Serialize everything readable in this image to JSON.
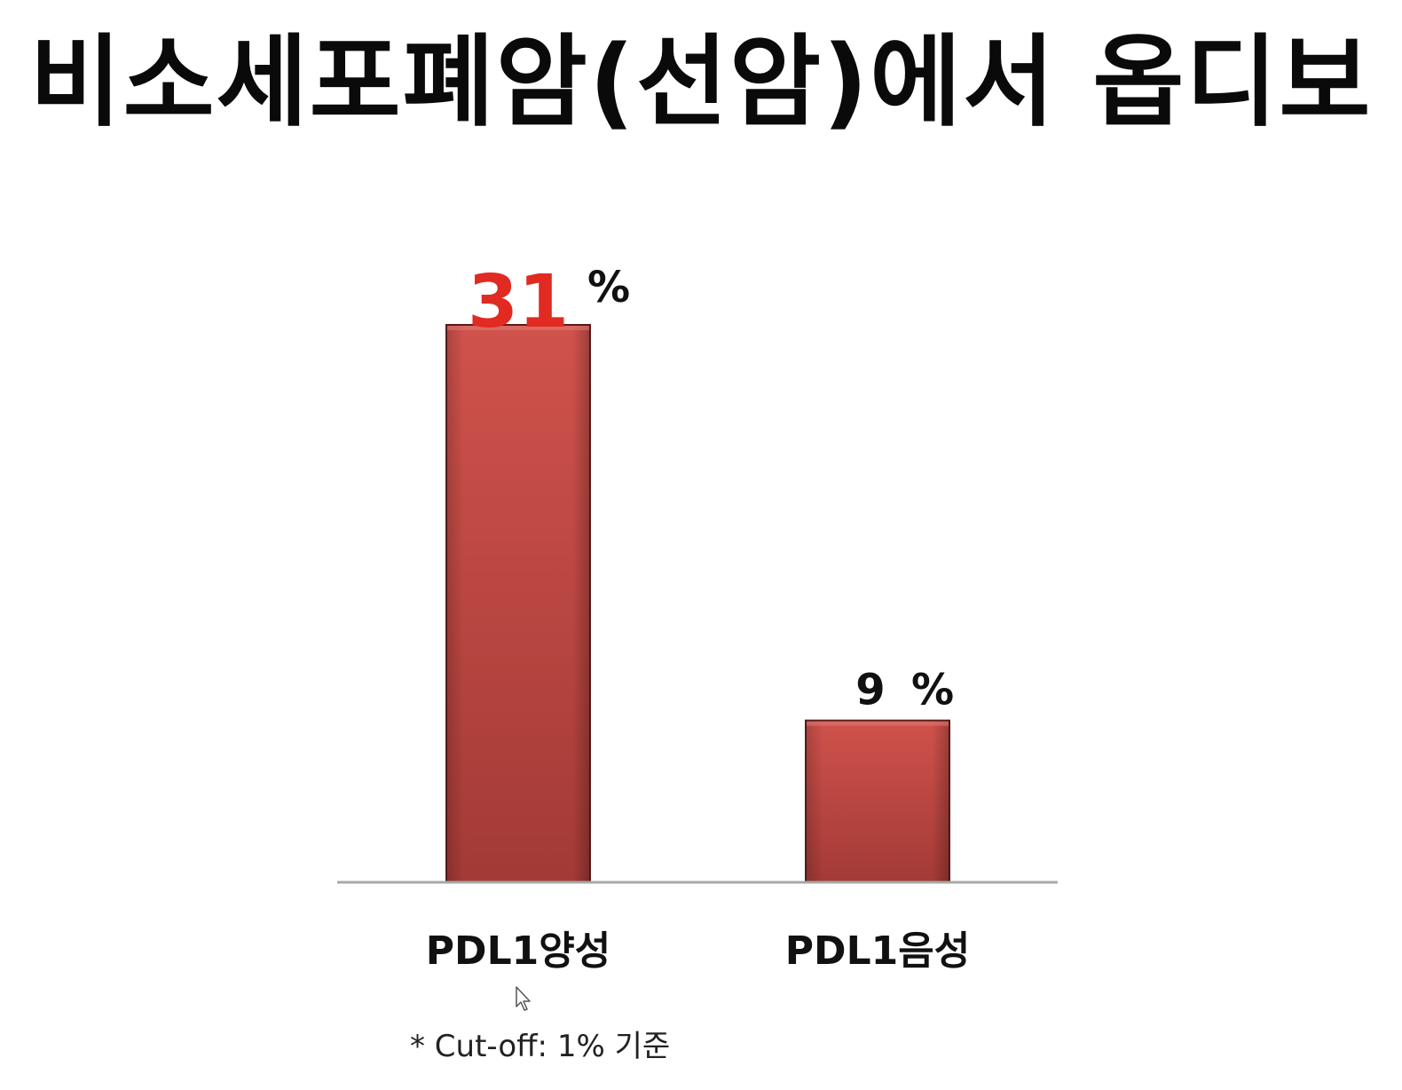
{
  "title": "비소세포폐암(선암)에서 옵디보",
  "footnote": "* Cut-off: 1% 기준",
  "colors": {
    "bar_fill": "#c0413c",
    "bar_fill_light": "#d0524c",
    "bar_fill_dark": "#a33a36",
    "bar_edge": "#5a1e1c",
    "highlight_text": "#e02a22",
    "text": "#111111",
    "axis": "#a9a9a9"
  },
  "icons": {
    "cursor": "mouse-pointer-icon"
  },
  "chart_data": {
    "type": "bar",
    "title": "비소세포폐암(선암)에서 옵디보",
    "categories": [
      "PDL1양성",
      "PDL1음성"
    ],
    "values": [
      31,
      9
    ],
    "value_labels": [
      {
        "value": "31",
        "unit": "%",
        "highlight": true
      },
      {
        "value": "9",
        "unit": "%",
        "highlight": false
      }
    ],
    "ylim": [
      0,
      31
    ],
    "xlabel": "",
    "ylabel": "",
    "grid": false,
    "legend": "none"
  }
}
